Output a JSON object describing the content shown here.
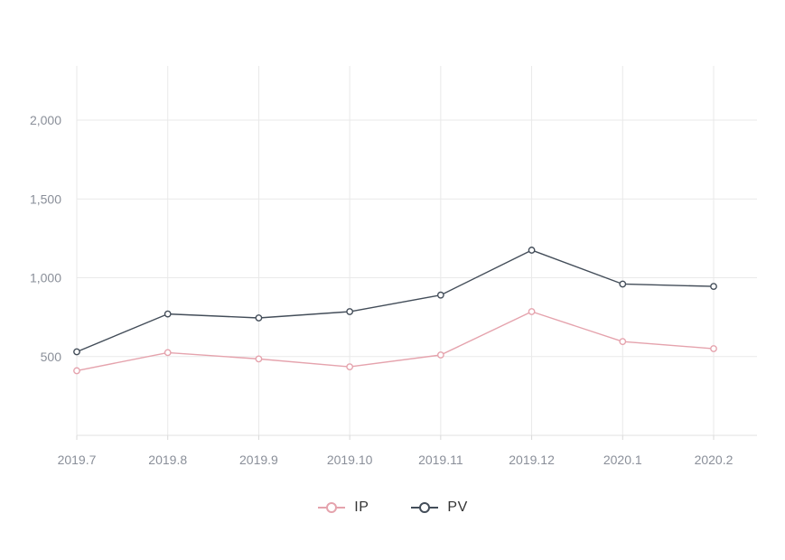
{
  "chart_data": {
    "type": "line",
    "title": "",
    "xlabel": "",
    "ylabel": "",
    "categories": [
      "2019.7",
      "2019.8",
      "2019.9",
      "2019.10",
      "2019.11",
      "2019.12",
      "2020.1",
      "2020.2"
    ],
    "series": [
      {
        "name": "IP",
        "color": "#e5a3ad",
        "marker": "hollow-circle",
        "values": [
          410,
          525,
          485,
          435,
          510,
          785,
          595,
          550
        ]
      },
      {
        "name": "PV",
        "color": "#434d59",
        "marker": "hollow-circle",
        "values": [
          530,
          770,
          745,
          785,
          890,
          1175,
          960,
          945
        ]
      }
    ],
    "ylim": [
      0,
      2000
    ],
    "yticks": [
      500,
      1000,
      1500,
      2000
    ],
    "ytick_labels": [
      "500",
      "1,000",
      "1,500",
      "2,000"
    ],
    "grid": true,
    "legend_position": "bottom"
  },
  "style": {
    "background_color": "#ffffff",
    "grid_color": "#e9e9e9",
    "axis_line_color": "#e2e2e2",
    "tick_color": "#d9d9d9",
    "axis_label_color": "#8a8f99",
    "legend_text_color": "#333333",
    "marker_fill": "#ffffff"
  }
}
